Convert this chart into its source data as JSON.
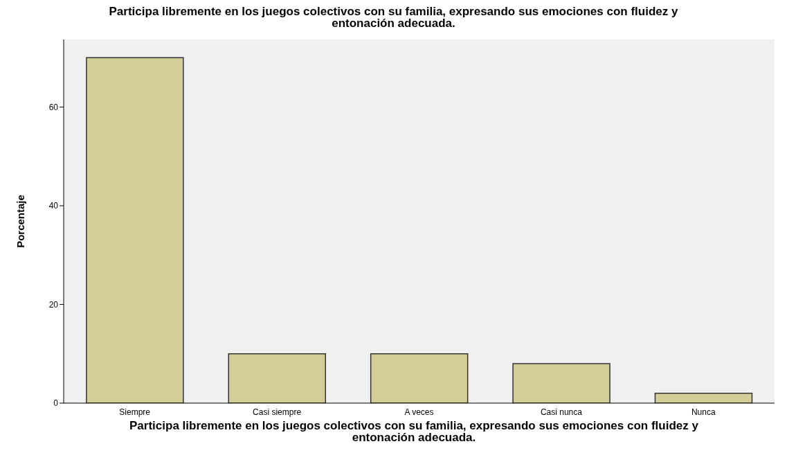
{
  "chart_data": {
    "type": "bar",
    "title": "Participa libremente en los juegos colectivos con su familia, expresando sus emociones con fluidez y entonación adecuada.",
    "xlabel": "Participa libremente en los juegos colectivos con su familia, expresando sus emociones con fluidez y entonación adecuada.",
    "ylabel": "Porcentaje",
    "categories": [
      "Siempre",
      "Casi siempre",
      "A veces",
      "Casi nunca",
      "Nunca"
    ],
    "values": [
      70,
      10,
      10,
      8,
      2
    ],
    "color": "#d3ce97",
    "ylim": [
      0,
      73.7
    ],
    "yticks": [
      0,
      20,
      40,
      60
    ]
  }
}
